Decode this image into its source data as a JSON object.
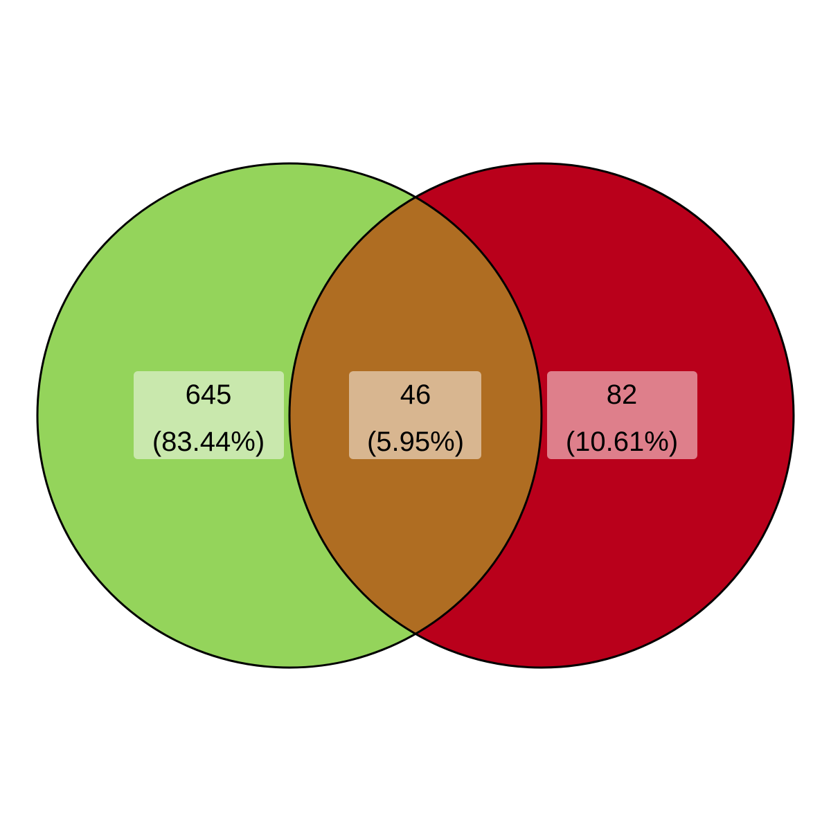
{
  "venn": {
    "colors": {
      "left": "#94D45B",
      "right": "#B9001B",
      "overlap": "#AF6D22",
      "outline": "#000000",
      "left_label_box": "#C9E8AD",
      "overlap_label_box": "#D8B690",
      "right_label_box": "#DE7F8B"
    },
    "regions": {
      "left_only": {
        "count": "645",
        "percent": "(83.44%)"
      },
      "overlap": {
        "count": "46",
        "percent": "(5.95%)"
      },
      "right_only": {
        "count": "82",
        "percent": "(10.61%)"
      }
    }
  }
}
